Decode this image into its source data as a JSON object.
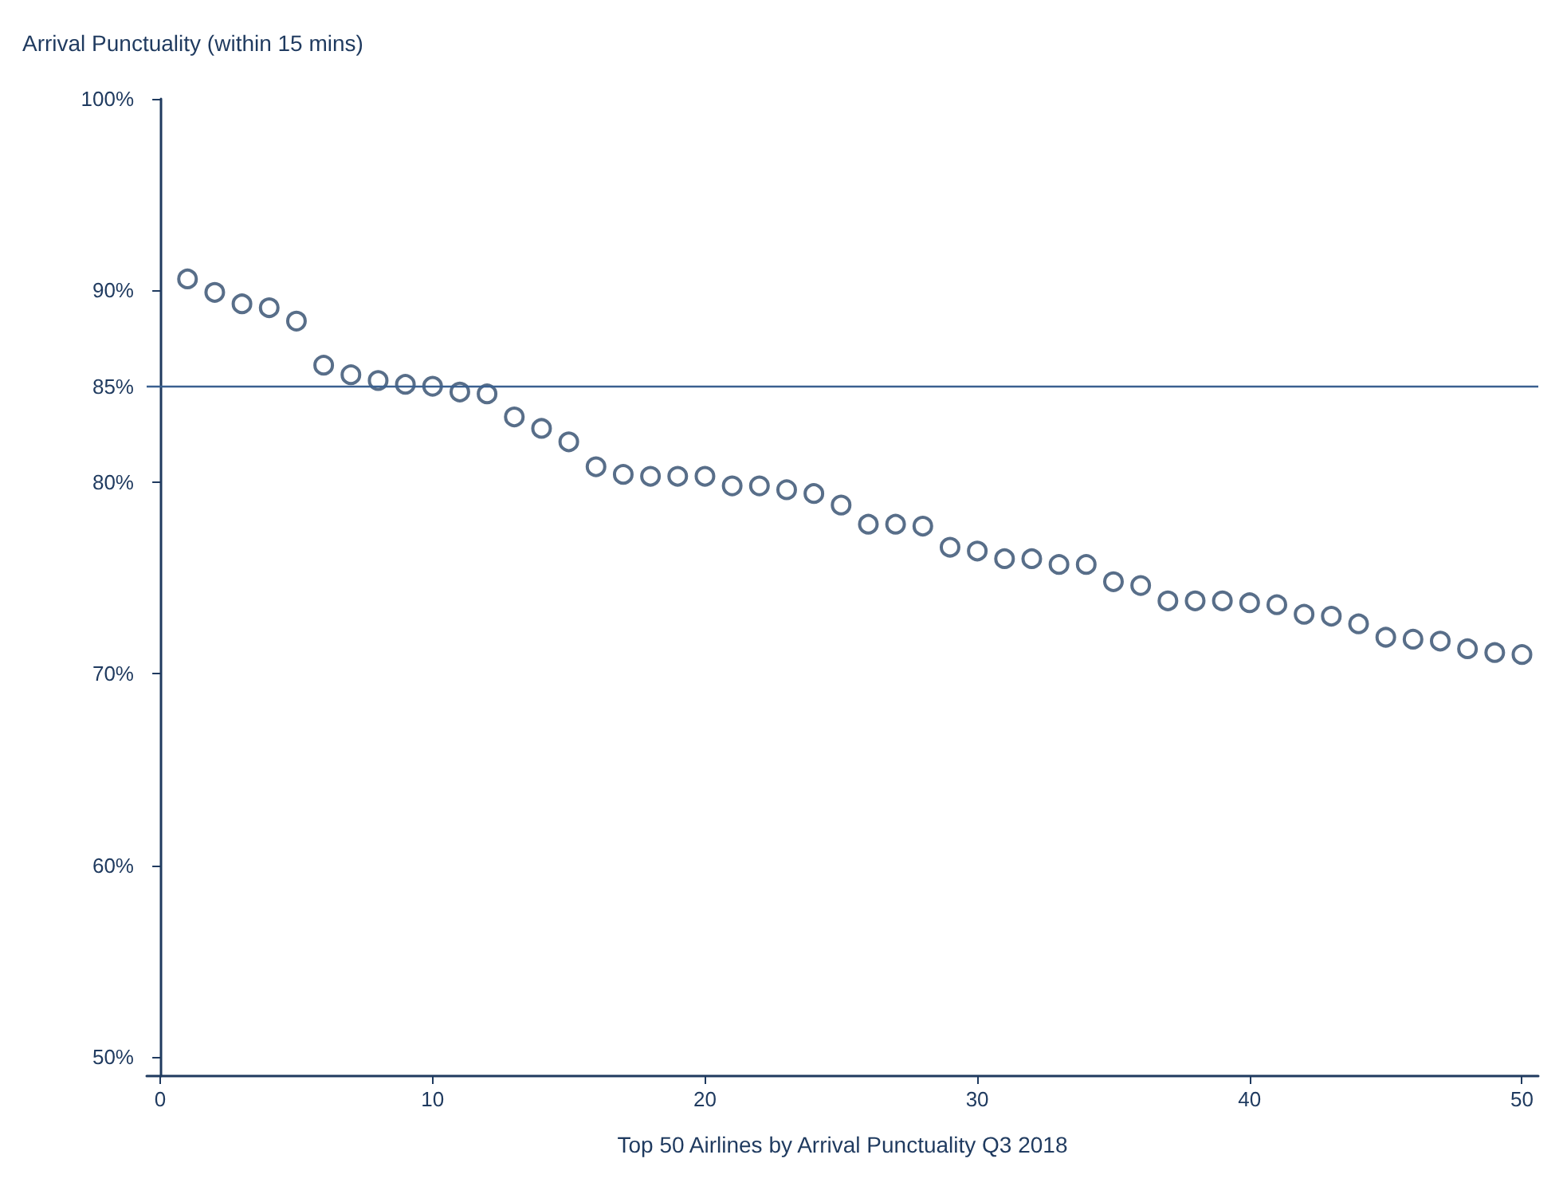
{
  "chart_data": {
    "type": "scatter",
    "ylabel": "Arrival Punctuality (within 15 mins)",
    "xlabel": "Top 50 Airlines by Arrival Punctuality Q3 2018",
    "x": [
      1,
      2,
      3,
      4,
      5,
      6,
      7,
      8,
      9,
      10,
      11,
      12,
      13,
      14,
      15,
      16,
      17,
      18,
      19,
      20,
      21,
      22,
      23,
      24,
      25,
      26,
      27,
      28,
      29,
      30,
      31,
      32,
      33,
      34,
      35,
      36,
      37,
      38,
      39,
      40,
      41,
      42,
      43,
      44,
      45,
      46,
      47,
      48,
      49,
      50
    ],
    "series": [
      {
        "color": "#2e4a6b",
        "values": [
          90.6,
          89.9,
          89.3,
          89.1,
          88.4,
          86.1,
          85.6,
          85.3,
          85.1,
          85.0,
          84.7,
          84.6,
          83.4,
          82.8,
          82.1,
          80.8,
          80.4,
          80.3,
          80.3,
          80.3,
          79.8,
          79.8,
          79.6,
          79.4,
          78.8,
          77.8,
          77.8,
          77.7,
          76.6,
          76.4,
          76.0,
          76.0,
          75.7,
          75.7,
          74.8,
          74.6,
          73.8,
          73.8,
          73.8,
          73.7,
          73.6,
          73.1,
          73.0,
          72.6,
          71.9,
          71.8,
          71.7,
          71.3,
          71.1,
          71.0
        ]
      }
    ],
    "xlim": [
      -0.5,
      50.6
    ],
    "xticks": [
      0,
      10,
      20,
      30,
      40,
      50
    ],
    "ylim": [
      49,
      100
    ],
    "yticks": [
      {
        "value": 50,
        "label": "50%"
      },
      {
        "value": 60,
        "label": "60%"
      },
      {
        "value": 70,
        "label": "70%"
      },
      {
        "value": 80,
        "label": "80%"
      },
      {
        "value": 85,
        "label": "85%"
      },
      {
        "value": 90,
        "label": "90%"
      },
      {
        "value": 100,
        "label": "100%"
      }
    ],
    "ref_lines": [
      {
        "axis": "y",
        "value": 85,
        "label": null,
        "color": "#3a6090"
      }
    ],
    "marker": "circle",
    "grid": false
  }
}
